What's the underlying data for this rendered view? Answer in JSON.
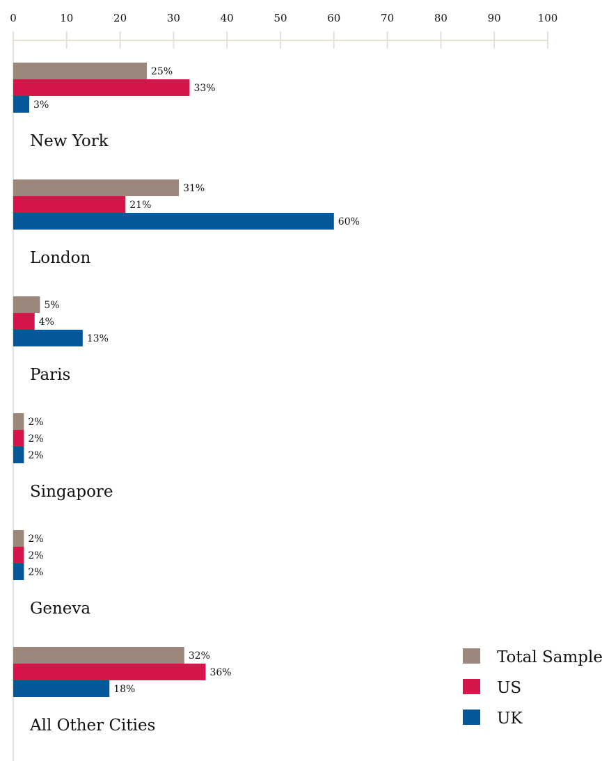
{
  "chart_data": {
    "type": "bar",
    "orientation": "horizontal",
    "title": "",
    "xlabel": "",
    "ylabel": "",
    "xlim": [
      0,
      100
    ],
    "x_ticks": [
      0,
      10,
      20,
      30,
      40,
      50,
      60,
      70,
      80,
      90,
      100
    ],
    "value_suffix": "%",
    "grid": false,
    "legend_position": "bottom-right",
    "categories": [
      "New York",
      "London",
      "Paris",
      "Singapore",
      "Geneva",
      "All Other Cities"
    ],
    "series": [
      {
        "name": "Total Sample",
        "color": "#9b877c",
        "values": [
          25,
          31,
          5,
          2,
          2,
          32
        ]
      },
      {
        "name": "US",
        "color": "#d6154a",
        "values": [
          33,
          21,
          4,
          2,
          2,
          36
        ]
      },
      {
        "name": "UK",
        "color": "#04589a",
        "values": [
          3,
          60,
          13,
          2,
          2,
          18
        ]
      }
    ],
    "axis_color": "#e6dfd6"
  }
}
